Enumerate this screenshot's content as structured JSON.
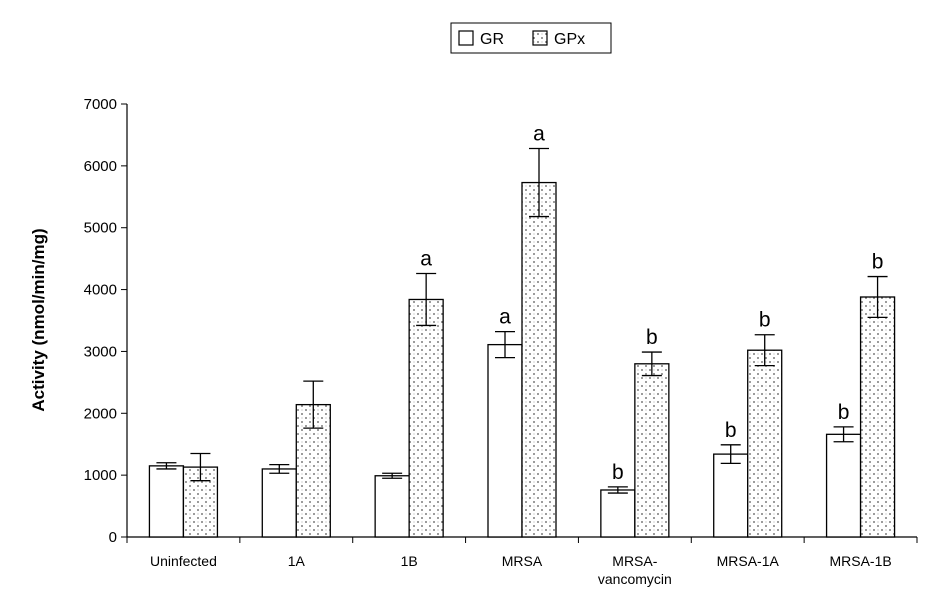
{
  "chart_data": {
    "type": "bar",
    "title": "",
    "xlabel": "",
    "ylabel": "Activity (nmol/min/mg)",
    "ylim": [
      0,
      7000
    ],
    "yticks": [
      0,
      1000,
      2000,
      3000,
      4000,
      5000,
      6000,
      7000
    ],
    "grid": false,
    "legend_position": "top-center",
    "categories": [
      [
        "Uninfected"
      ],
      [
        "1A"
      ],
      [
        "1B"
      ],
      [
        "MRSA"
      ],
      [
        "MRSA-",
        "vancomycin"
      ],
      [
        "MRSA-1A"
      ],
      [
        "MRSA-1B"
      ]
    ],
    "series": [
      {
        "name": "GR",
        "fill": "plain",
        "values": [
          1150,
          1100,
          990,
          3110,
          760,
          1340,
          1660
        ],
        "errors": [
          50,
          70,
          40,
          210,
          50,
          150,
          120
        ],
        "significance": [
          "",
          "",
          "",
          "a",
          "b",
          "b",
          "b"
        ]
      },
      {
        "name": "GPx",
        "fill": "dotted",
        "values": [
          1130,
          2140,
          3840,
          5730,
          2800,
          3020,
          3880
        ],
        "errors": [
          220,
          380,
          420,
          550,
          190,
          250,
          330
        ],
        "significance": [
          "",
          "",
          "a",
          "a",
          "b",
          "b",
          "b"
        ]
      }
    ]
  }
}
